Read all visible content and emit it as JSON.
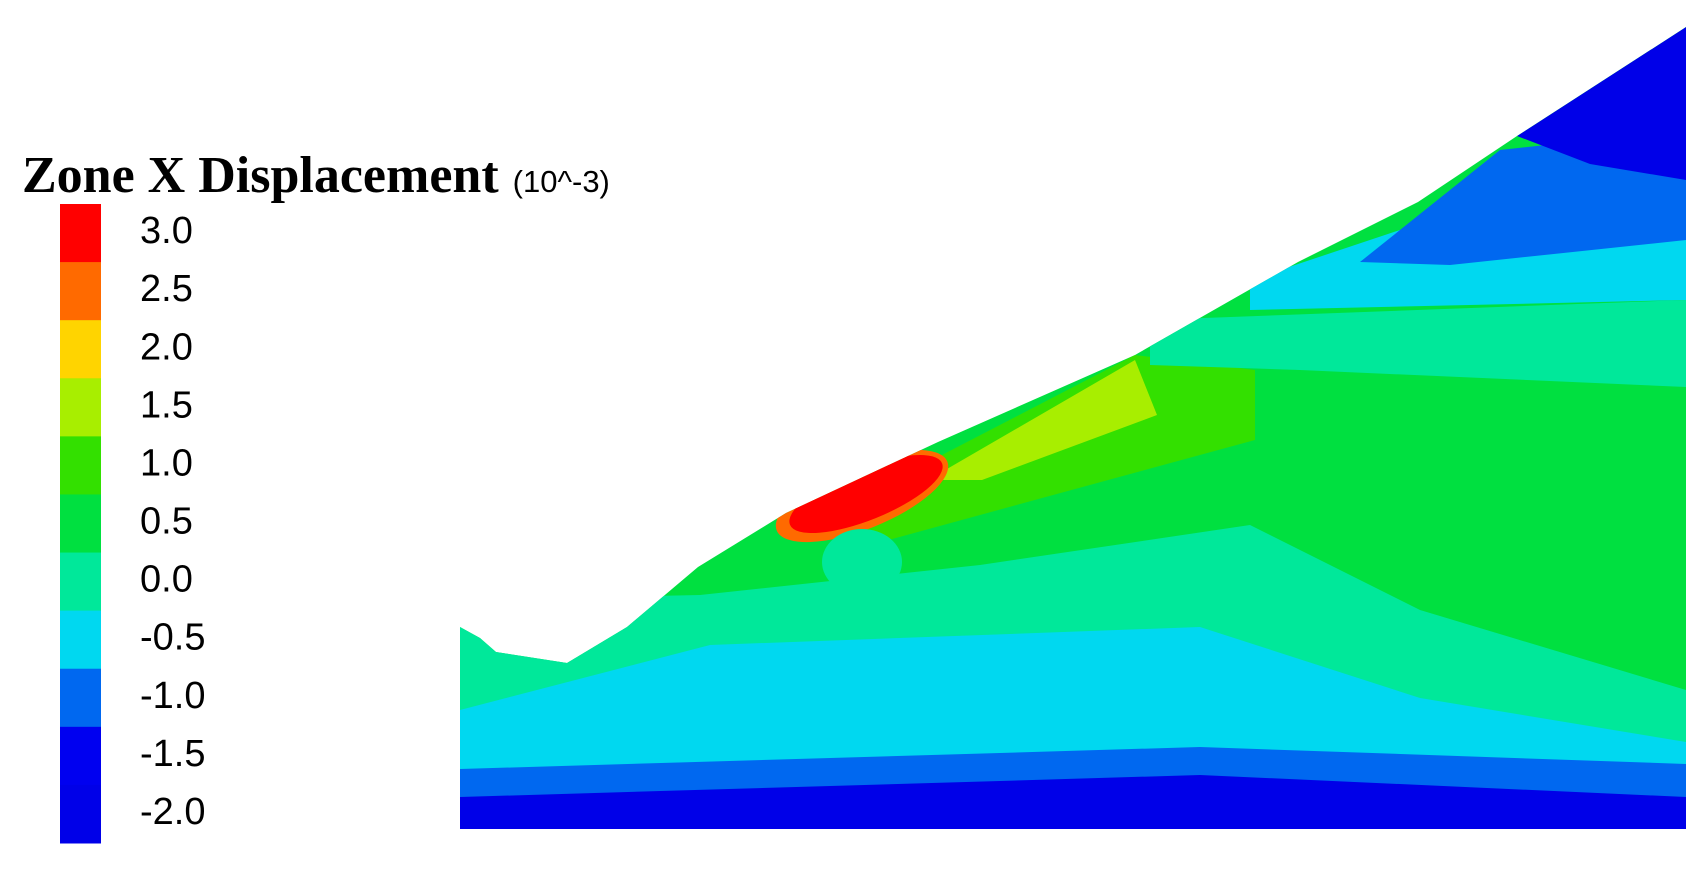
{
  "legend": {
    "title": "Zone X Displacement",
    "unit": "(10^-3)",
    "levels": [
      {
        "label": "3.0",
        "color": "#ff0000"
      },
      {
        "label": "2.5",
        "color": "#ff6a00"
      },
      {
        "label": "2.0",
        "color": "#ffd400"
      },
      {
        "label": "1.5",
        "color": "#a8ee00"
      },
      {
        "label": "1.0",
        "color": "#33e000"
      },
      {
        "label": "0.5",
        "color": "#00e040"
      },
      {
        "label": "0.0",
        "color": "#00e89a"
      },
      {
        "label": "-0.5",
        "color": "#00d8f0"
      },
      {
        "label": "-1.0",
        "color": "#0068f0"
      },
      {
        "label": "-1.5",
        "color": "#0000f0"
      },
      {
        "label": "-2.0",
        "color": "#0000e8"
      }
    ]
  }
}
